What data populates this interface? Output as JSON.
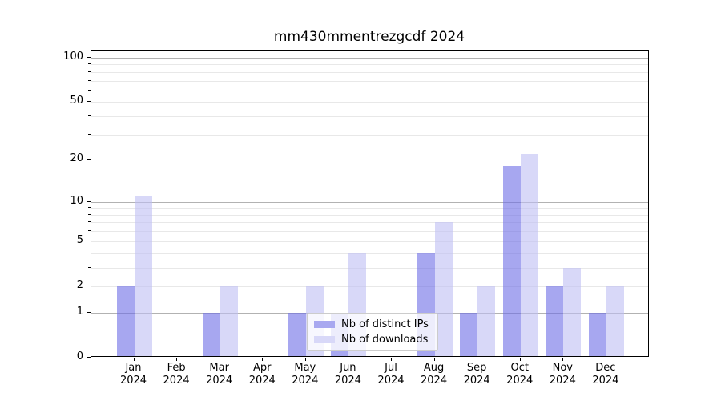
{
  "figure": {
    "title": "mm430mmentrezgcdf 2024",
    "background_color": "#ffffff"
  },
  "chart_data": {
    "type": "bar",
    "title": "mm430mmentrezgcdf 2024",
    "scale": "log10(1+y) pseudo-log",
    "grid": "on",
    "categories": [
      "Jan",
      "Feb",
      "Mar",
      "Apr",
      "May",
      "Jun",
      "Jul",
      "Aug",
      "Sep",
      "Oct",
      "Nov",
      "Dec"
    ],
    "category_year": "2024",
    "series": [
      {
        "name": "Nb of distinct IPs",
        "color": "rgba(108,108,230,0.6)",
        "solid_color": "#a8a8f0",
        "values": [
          2,
          0,
          1,
          0,
          1,
          1,
          0,
          4,
          1,
          18,
          2,
          1
        ]
      },
      {
        "name": "Nb of downloads",
        "color": "rgba(190,190,243,0.6)",
        "solid_color": "#d8d8f8",
        "values": [
          11,
          0,
          2,
          0,
          2,
          4,
          0,
          7,
          2,
          22,
          3,
          2
        ]
      }
    ],
    "y_axis": {
      "tick_values": [
        0,
        1,
        2,
        5,
        10,
        20,
        50,
        100
      ],
      "major_gridlines": [
        1,
        10,
        100
      ],
      "minor_gridlines": [
        2,
        3,
        4,
        5,
        6,
        7,
        8,
        9,
        20,
        30,
        40,
        50,
        60,
        70,
        80,
        90
      ],
      "range_top_value": 111
    },
    "legend_position": "lower center"
  },
  "colors": {
    "major_grid": "#b2b2b2",
    "minor_grid": "#e8e8e8",
    "spine": "#000000",
    "text": "#000000",
    "legend_border": "#cccccc",
    "legend_background": "rgba(255,255,255,0.8)"
  }
}
